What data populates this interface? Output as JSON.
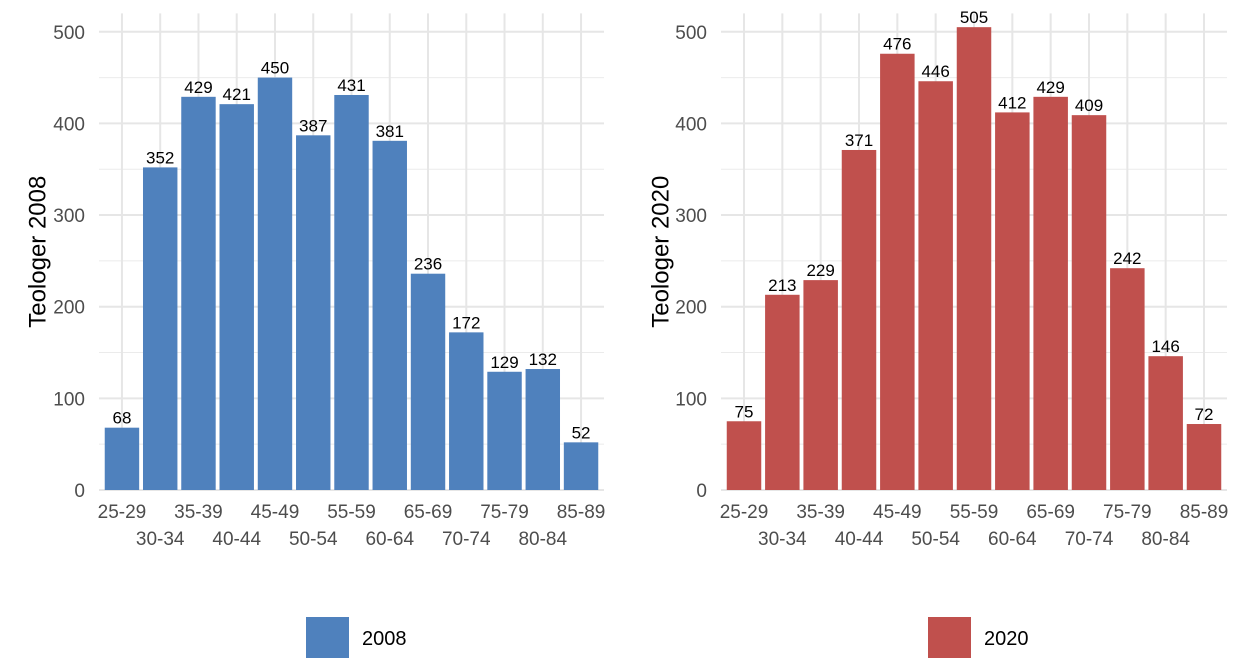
{
  "chart_data": [
    {
      "type": "bar",
      "ylabel": "Teologer 2008",
      "xlabel": "",
      "color": "#4F81BD",
      "ylim": [
        0,
        520
      ],
      "yticks": [
        0,
        100,
        200,
        300,
        400,
        500
      ],
      "categories": [
        "25-29",
        "30-34",
        "35-39",
        "40-44",
        "45-49",
        "50-54",
        "55-59",
        "60-64",
        "65-69",
        "70-74",
        "75-79",
        "80-84",
        "85-89"
      ],
      "values": [
        68,
        352,
        429,
        421,
        450,
        387,
        431,
        381,
        236,
        172,
        129,
        132,
        52
      ],
      "legend": {
        "label": "2008",
        "position": "bottom"
      },
      "grid": true
    },
    {
      "type": "bar",
      "ylabel": "Teologer 2020",
      "xlabel": "",
      "color": "#C0504D",
      "ylim": [
        0,
        520
      ],
      "yticks": [
        0,
        100,
        200,
        300,
        400,
        500
      ],
      "categories": [
        "25-29",
        "30-34",
        "35-39",
        "40-44",
        "45-49",
        "50-54",
        "55-59",
        "60-64",
        "65-69",
        "70-74",
        "75-79",
        "80-84",
        "85-89"
      ],
      "values": [
        75,
        213,
        229,
        371,
        476,
        446,
        505,
        412,
        429,
        409,
        242,
        146,
        72
      ],
      "legend": {
        "label": "2020",
        "position": "bottom"
      },
      "grid": true
    }
  ]
}
